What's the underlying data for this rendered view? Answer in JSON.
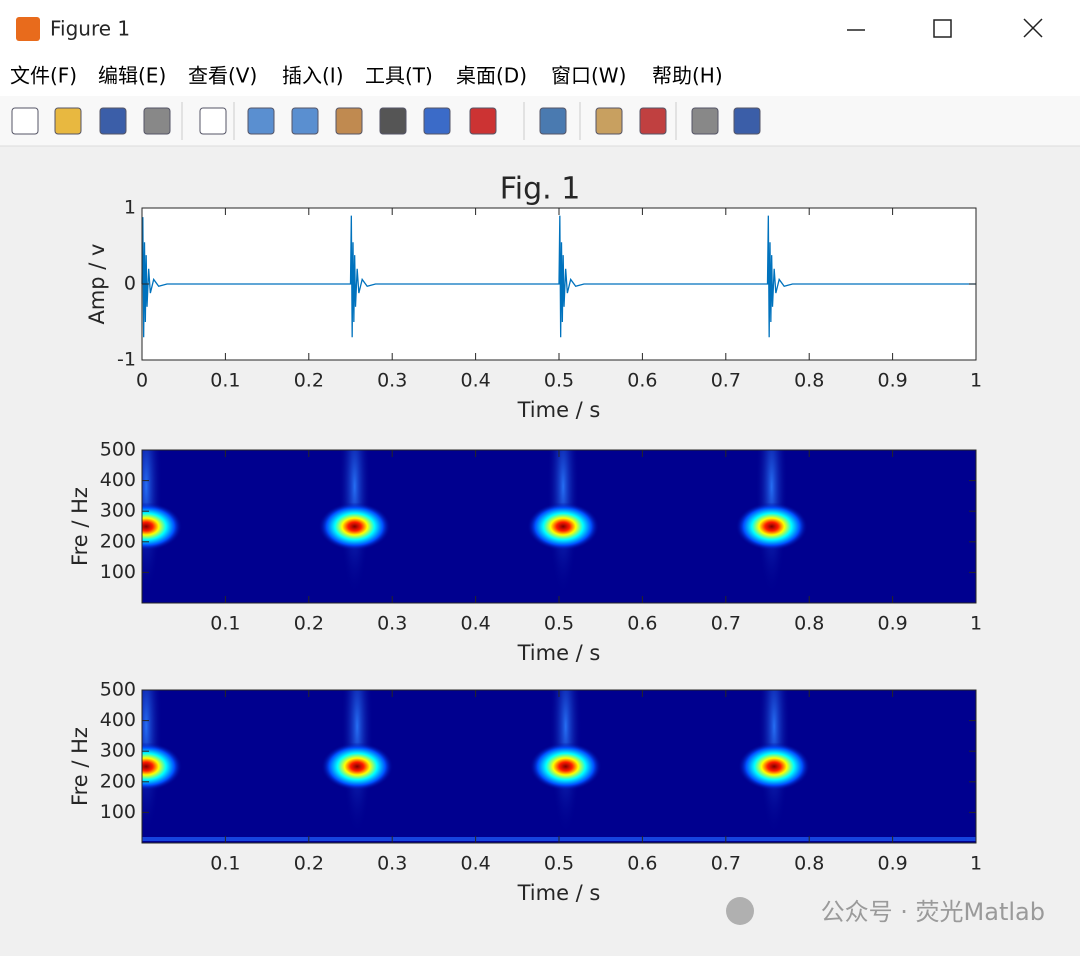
{
  "window": {
    "title": "Figure 1"
  },
  "menu": [
    "文件(F)",
    "编辑(E)",
    "查看(V)",
    "插入(I)",
    "工具(T)",
    "桌面(D)",
    "窗口(W)",
    "帮助(H)"
  ],
  "watermark": "公众号 · 荧光Matlab",
  "chart_data": [
    {
      "type": "line",
      "title": "Fig. 1",
      "xlabel": "Time / s",
      "ylabel": "Amp / v",
      "color": "#0072bd",
      "x": [
        0,
        0.001,
        0.002,
        0.003,
        0.004,
        0.005,
        0.006,
        0.008,
        0.01,
        0.014,
        0.02,
        0.03,
        0.25,
        0.251,
        0.252,
        0.253,
        0.254,
        0.255,
        0.256,
        0.258,
        0.26,
        0.264,
        0.27,
        0.28,
        0.5,
        0.501,
        0.502,
        0.503,
        0.504,
        0.505,
        0.506,
        0.508,
        0.51,
        0.514,
        0.52,
        0.53,
        0.75,
        0.751,
        0.752,
        0.753,
        0.754,
        0.755,
        0.756,
        0.758,
        0.76,
        0.764,
        0.77,
        0.78,
        1
      ],
      "values": [
        0,
        0.88,
        -0.7,
        0.55,
        -0.5,
        0.38,
        -0.3,
        0.2,
        -0.12,
        0.06,
        -0.03,
        0,
        0,
        0.9,
        -0.7,
        0.55,
        -0.5,
        0.38,
        -0.3,
        0.2,
        -0.12,
        0.06,
        -0.03,
        0,
        0,
        0.9,
        -0.7,
        0.55,
        -0.5,
        0.38,
        -0.3,
        0.2,
        -0.12,
        0.06,
        -0.03,
        0,
        0,
        0.9,
        -0.7,
        0.55,
        -0.5,
        0.38,
        -0.3,
        0.2,
        -0.12,
        0.06,
        -0.03,
        0,
        0
      ],
      "xlim": [
        0,
        1
      ],
      "ylim": [
        -1,
        1
      ],
      "xticks": [
        0,
        0.1,
        0.2,
        0.3,
        0.4,
        0.5,
        0.6,
        0.7,
        0.8,
        0.9,
        1
      ],
      "yticks": [
        -1,
        0,
        1
      ]
    },
    {
      "type": "spectrogram",
      "xlabel": "Time / s",
      "ylabel": "Fre / Hz",
      "background": "#00008f",
      "peaks_x": [
        0.005,
        0.255,
        0.505,
        0.755
      ],
      "peaks_y": [
        250,
        250,
        250,
        250
      ],
      "xlim": [
        0,
        1
      ],
      "ylim": [
        0,
        500
      ],
      "xticks": [
        0.1,
        0.2,
        0.3,
        0.4,
        0.5,
        0.6,
        0.7,
        0.8,
        0.9,
        1
      ],
      "yticks": [
        100,
        200,
        300,
        400,
        500
      ]
    },
    {
      "type": "spectrogram",
      "xlabel": "Time / s",
      "ylabel": "Fre / Hz",
      "background": "#00008f",
      "peaks_x": [
        0.005,
        0.258,
        0.508,
        0.758
      ],
      "peaks_y": [
        250,
        250,
        250,
        250
      ],
      "xlim": [
        0,
        1
      ],
      "ylim": [
        0,
        500
      ],
      "xticks": [
        0.1,
        0.2,
        0.3,
        0.4,
        0.5,
        0.6,
        0.7,
        0.8,
        0.9,
        1
      ],
      "yticks": [
        100,
        200,
        300,
        400,
        500
      ]
    }
  ]
}
